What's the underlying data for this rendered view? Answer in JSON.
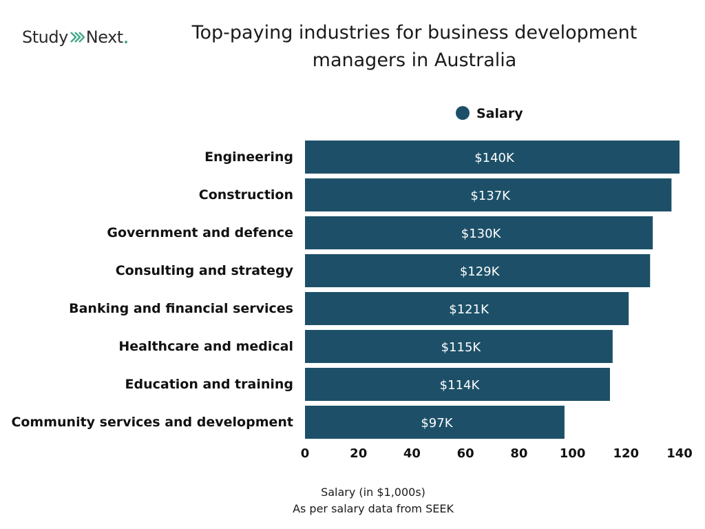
{
  "logo": {
    "text_left": "Study",
    "text_right": "Next",
    "accent_color": "#4aa98c"
  },
  "chart_data": {
    "type": "bar",
    "orientation": "horizontal",
    "title": "Top-paying industries for business development managers in Australia",
    "title_lines": [
      "Top-paying industries for business development",
      "managers in Australia"
    ],
    "categories": [
      "Engineering",
      "Construction",
      "Government and defence",
      "Consulting and strategy",
      "Banking and financial services",
      "Healthcare and medical",
      "Education and training",
      "Community services and development"
    ],
    "series": [
      {
        "name": "Salary",
        "color": "#1d5068",
        "values": [
          140,
          137,
          130,
          129,
          121,
          115,
          114,
          97
        ],
        "data_labels": [
          "$140K",
          "$137K",
          "$130K",
          "$129K",
          "$121K",
          "$115K",
          "$114K",
          "$97K"
        ]
      }
    ],
    "xlim": [
      0,
      140
    ],
    "xticks": [
      0,
      20,
      40,
      60,
      80,
      100,
      120,
      140
    ],
    "xlabel": "Salary (in $1,000s)",
    "note": "As per salary data from SEEK",
    "legend_position": "top",
    "grid": false
  }
}
